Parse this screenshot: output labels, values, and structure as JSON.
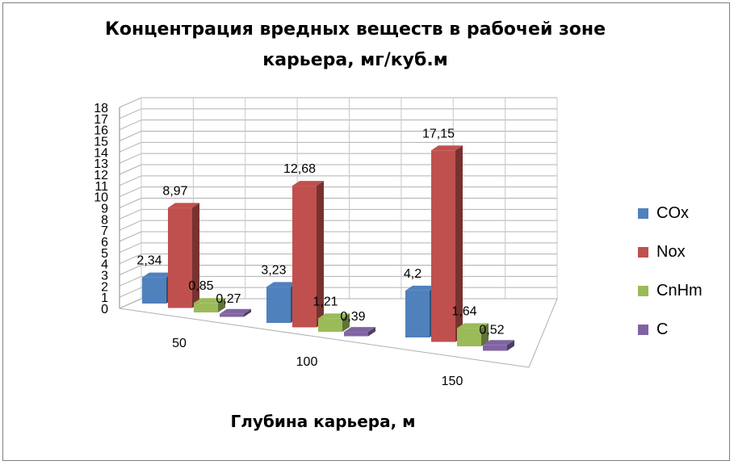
{
  "chart_data": {
    "type": "bar",
    "title": "Концентрация вредных веществ в рабочей зоне карьера, мг/куб.м",
    "xlabel": "Глубина карьера, м",
    "ylabel": "",
    "ylim": [
      0,
      18
    ],
    "yticks": [
      "0",
      "1",
      "2",
      "3",
      "4",
      "5",
      "6",
      "7",
      "8",
      "9",
      "10",
      "11",
      "12",
      "13",
      "14",
      "15",
      "16",
      "17",
      "18"
    ],
    "categories": [
      "50",
      "100",
      "150"
    ],
    "series": [
      {
        "name": "COx",
        "color": "#4f81bd",
        "values": [
          2.34,
          3.23,
          4.2
        ],
        "labels": [
          "2,34",
          "3,23",
          "4,2"
        ]
      },
      {
        "name": "Nox",
        "color": "#c0504d",
        "values": [
          8.97,
          12.68,
          17.15
        ],
        "labels": [
          "8,97",
          "12,68",
          "17,15"
        ]
      },
      {
        "name": "CnHm",
        "color": "#9bbb59",
        "values": [
          0.85,
          1.21,
          1.64
        ],
        "labels": [
          "0,85",
          "1,21",
          "1,64"
        ]
      },
      {
        "name": "C",
        "color": "#8064a2",
        "values": [
          0.27,
          0.39,
          0.52
        ],
        "labels": [
          "0,27",
          "0,39",
          "0,52"
        ]
      }
    ],
    "grid": true,
    "legend": "right"
  }
}
